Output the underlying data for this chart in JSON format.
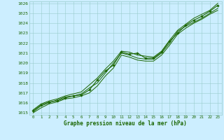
{
  "xlabel": "Graphe pression niveau de la mer (hPa)",
  "xlim": [
    -0.5,
    23.5
  ],
  "ylim": [
    1014.8,
    1026.2
  ],
  "yticks": [
    1015,
    1016,
    1017,
    1018,
    1019,
    1020,
    1021,
    1022,
    1023,
    1024,
    1025,
    1026
  ],
  "xticks": [
    0,
    1,
    2,
    3,
    4,
    5,
    6,
    7,
    8,
    9,
    10,
    11,
    12,
    13,
    14,
    15,
    16,
    17,
    18,
    19,
    20,
    21,
    22,
    23
  ],
  "bg_color": "#cceeff",
  "grid_color": "#99cccc",
  "line_color": "#1a6600",
  "tick_color": "#1a6600",
  "label_color": "#1a6600",
  "series": [
    {
      "x": [
        0,
        1,
        2,
        3,
        4,
        5,
        6,
        7,
        8,
        9,
        10,
        11,
        12,
        13,
        14,
        15,
        16,
        17,
        18,
        19,
        20,
        21,
        22,
        23
      ],
      "y": [
        1015.2,
        1015.8,
        1016.1,
        1016.2,
        1016.5,
        1016.7,
        1016.8,
        1017.3,
        1018.3,
        1019.2,
        1019.8,
        1021.1,
        1020.9,
        1021.0,
        1020.5,
        1020.5,
        1021.1,
        1022.2,
        1023.0,
        1023.8,
        1024.3,
        1024.7,
        1025.2,
        1025.8
      ],
      "marker": "D",
      "linewidth": 0.8,
      "markersize": 1.8,
      "has_marker": true
    },
    {
      "x": [
        0,
        1,
        2,
        3,
        4,
        5,
        6,
        7,
        8,
        9,
        10,
        11,
        12,
        13,
        14,
        15,
        16,
        17,
        18,
        19,
        20,
        21,
        22,
        23
      ],
      "y": [
        1015.1,
        1015.7,
        1016.0,
        1016.3,
        1016.6,
        1016.7,
        1016.9,
        1017.5,
        1018.0,
        1019.0,
        1020.0,
        1021.0,
        1020.8,
        1020.5,
        1020.4,
        1020.4,
        1021.0,
        1022.0,
        1023.2,
        1023.7,
        1024.1,
        1024.5,
        1025.0,
        1025.5
      ],
      "marker": null,
      "linewidth": 0.7,
      "markersize": 0,
      "has_marker": false
    },
    {
      "x": [
        0,
        1,
        2,
        3,
        4,
        5,
        6,
        7,
        8,
        9,
        10,
        11,
        12,
        13,
        14,
        15,
        16,
        17,
        18,
        19,
        20,
        21,
        22,
        23
      ],
      "y": [
        1015.3,
        1015.9,
        1016.2,
        1016.4,
        1016.7,
        1016.9,
        1017.1,
        1017.8,
        1018.5,
        1019.4,
        1020.2,
        1021.2,
        1021.1,
        1020.8,
        1020.7,
        1020.6,
        1021.2,
        1022.3,
        1023.3,
        1023.9,
        1024.5,
        1024.9,
        1025.3,
        1026.0
      ],
      "marker": null,
      "linewidth": 0.7,
      "markersize": 0,
      "has_marker": false
    },
    {
      "x": [
        0,
        1,
        2,
        3,
        4,
        5,
        6,
        7,
        8,
        9,
        10,
        11,
        12,
        13,
        14,
        15,
        16,
        17,
        18,
        19,
        20,
        21,
        22,
        23
      ],
      "y": [
        1015.0,
        1015.5,
        1015.9,
        1016.1,
        1016.4,
        1016.5,
        1016.7,
        1017.0,
        1017.7,
        1018.7,
        1019.5,
        1020.8,
        1020.6,
        1020.3,
        1020.2,
        1020.2,
        1020.8,
        1021.8,
        1022.9,
        1023.5,
        1024.0,
        1024.4,
        1024.9,
        1025.3
      ],
      "marker": null,
      "linewidth": 0.7,
      "markersize": 0,
      "has_marker": false
    }
  ],
  "figsize": [
    3.2,
    2.0
  ],
  "dpi": 100
}
